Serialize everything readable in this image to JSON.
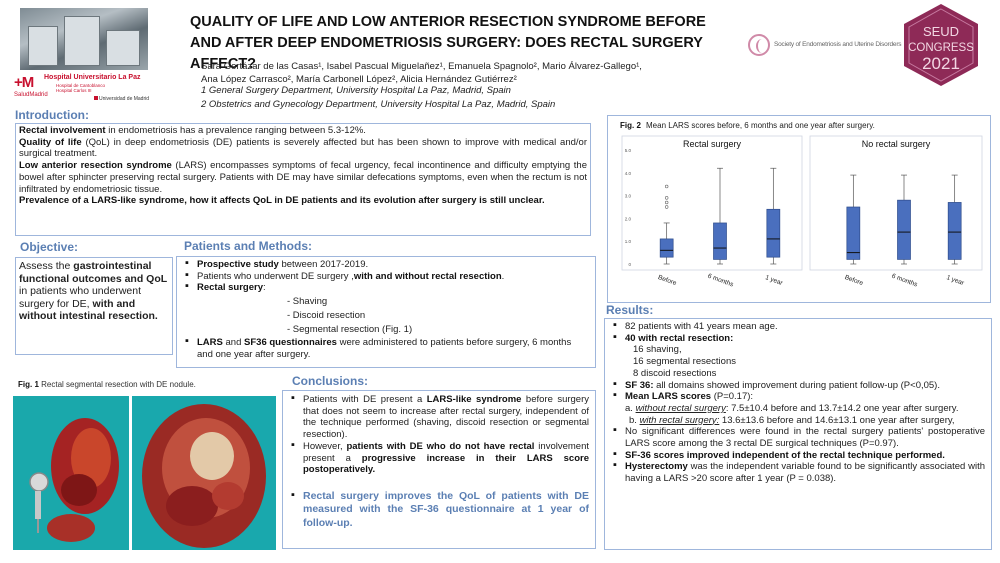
{
  "header": {
    "title_line1": "QUALITY OF LIFE AND LOW ANTERIOR RESECTION SYNDROME BEFORE",
    "title_line2": "AND AFTER DEEP ENDOMETRIOSIS SURGERY: DOES RECTAL SURGERY AFFECT?",
    "authors_line1": "Sara Gortázar de las Casas¹, Isabel Pascual Miguelañez¹, Emanuela Spagnolo², Mario Álvarez-Gallego¹,",
    "authors_line2": "Ana López Carrasco², María Carbonell López², Alicia Hernández Gutiérrez²",
    "affiliation1": "1 General Surgery Department, University Hospital La Paz, Madrid, Spain",
    "affiliation2": "2 Obstetrics and Gynecology Department, University Hospital La Paz, Madrid, Spain"
  },
  "logos": {
    "hospital_name": "Hospital Universitario La Paz",
    "hospital_sub1": "Hospital de Cantoblanco",
    "hospital_sub2": "Hospital Carlos III",
    "salud": "SaludMadrid",
    "ucm": "Universidad de Madrid",
    "seud_society": "Society of Endometriosis and Uterine Disorders",
    "congress_line1": "SEUD",
    "congress_line2": "CONGRESS",
    "congress_year": "2021"
  },
  "introduction": {
    "heading": "Introduction:",
    "p1_bold": "Rectal involvement",
    "p1_rest": " in endometriosis has a prevalence ranging between 5.3-12%.",
    "p2_bold": "Quality of life",
    "p2_rest": " (QoL) in deep endometriosis (DE) patients is severely affected but has been shown to improve with medical and/or surgical treatment.",
    "p3_bold": "Low anterior resection syndrome",
    "p3_rest": " (LARS) encompasses symptoms of fecal urgency, fecal incontinence and difficulty emptying the bowel after sphincter preserving rectal surgery. Patients with DE may have similar defecations symptoms, even when the rectum is not infiltrated by endometriosic tissue.",
    "p4_bold": "Prevalence of a LARS-like syndrome, how it affects QoL in DE patients and its evolution after surgery is still unclear."
  },
  "objective": {
    "heading": "Objective:",
    "t1": "Assess the ",
    "t2_bold": "gastrointestinal functional outcomes and QoL",
    "t3": " in patients who underwent surgery for DE, ",
    "t4_bold": "with and without intestinal resection."
  },
  "patients_methods": {
    "heading": "Patients and Methods:",
    "b1_bold": "Prospective study",
    "b1_rest": " between 2017-2019.",
    "b2_text": "Patients who underwent DE surgery ,",
    "b2_bold": "with and without rectal resection",
    "b2_end": ".",
    "b3_bold": "Rectal surgery",
    "b3_rest": ":",
    "sub1": "- Shaving",
    "sub2": "- Discoid resection",
    "sub3": "- Segmental resection (Fig. 1)",
    "b4_bold1": "LARS",
    "b4_mid": " and ",
    "b4_bold2": "SF36 questionnaires",
    "b4_rest": " were administered to patients before surgery, 6 months and one year after surgery."
  },
  "conclusions": {
    "heading": "Conclusions:",
    "c1_a": "Patients with DE present a ",
    "c1_bold": "LARS-like syndrome",
    "c1_b": " before surgery that does not seem to increase after rectal surgery, independent of the technique performed (shaving, discoid resection or segmental resection).",
    "c2_a": "However, ",
    "c2_bold": "patients with DE who do not have rectal",
    "c2_b": " involvement present a ",
    "c2_bold2": "progressive increase in their LARS score postoperatively.",
    "c3": "Rectal surgery improves the QoL of patients with DE measured with the SF-36 questionnaire at 1 year of follow-up."
  },
  "results": {
    "heading": "Results:",
    "r1": "82 patients with 41 years mean age.",
    "r2_bold": "40 with rectal resection:",
    "r2_s1": "16 shaving,",
    "r2_s2": "16 segmental resections",
    "r2_s3": "8 discoid resections",
    "r3_bold": "SF 36:",
    "r3_rest": " all domains showed improvement during patient follow-up (P<0,05).",
    "r4_bold": "Mean LARS scores",
    "r4_rest": " (P=0.17):",
    "r4_a_label": "a. ",
    "r4_a_u": "without rectal surgery",
    "r4_a_rest": ":  7.5±10.4 before and 13.7±14.2 one year after surgery.",
    "r4_b_label": "b. ",
    "r4_b_u": "with rectal surgery:",
    "r4_b_rest": " 13.6±13.6 before and 14.6±13.1 one year after surgery,",
    "r5": "No significant differences were found in the rectal surgery patients' postoperative LARS score among the 3 rectal DE surgical techniques (P=0.97).",
    "r6_bold": "SF-36 scores improved independent of the rectal technique performed.",
    "r7_bold": "Hysterectomy",
    "r7_rest": " was the independent variable found to be significantly associated with having a LARS >20 score after 1 year (P = 0.038)."
  },
  "figure1": {
    "caption_bold": "Fig. 1",
    "caption": " Rectal segmental resection with DE nodule."
  },
  "figure2": {
    "caption_bold": "Fig. 2",
    "caption": " Mean LARS scores before, 6 months and one year after surgery."
  },
  "colors": {
    "heading": "#5b7fb3",
    "border": "#9fb6dc",
    "box_fill": "#4a6fbe",
    "box_edge": "#2e4c8a",
    "conclusion_highlight": "#5b7fb3"
  },
  "chart_data": {
    "type": "boxplot",
    "y_tick_labels": [
      "0",
      "1.0",
      "2.0",
      "3.0",
      "4.0",
      "5.0"
    ],
    "ylim": [
      0,
      50
    ],
    "categories": [
      "Before",
      "6 months",
      "1 year"
    ],
    "panels": [
      {
        "name": "Rectal surgery",
        "boxes": [
          {
            "category": "Before",
            "min": 0,
            "q1": 3,
            "median": 6,
            "q3": 11,
            "max": 18,
            "outliers": [
              25,
              27,
              29,
              34
            ]
          },
          {
            "category": "6 months",
            "min": 0,
            "q1": 2,
            "median": 7,
            "q3": 18,
            "max": 42,
            "outliers": []
          },
          {
            "category": "1 year",
            "min": 0,
            "q1": 3,
            "median": 11,
            "q3": 24,
            "max": 42,
            "outliers": []
          }
        ]
      },
      {
        "name": "No rectal surgery",
        "boxes": [
          {
            "category": "Before",
            "min": 0,
            "q1": 2,
            "median": 5,
            "q3": 25,
            "max": 39,
            "outliers": []
          },
          {
            "category": "6 months",
            "min": 0,
            "q1": 2,
            "median": 14,
            "q3": 28,
            "max": 39,
            "outliers": []
          },
          {
            "category": "1 year",
            "min": 0,
            "q1": 2,
            "median": 14,
            "q3": 27,
            "max": 39,
            "outliers": []
          }
        ]
      }
    ]
  }
}
